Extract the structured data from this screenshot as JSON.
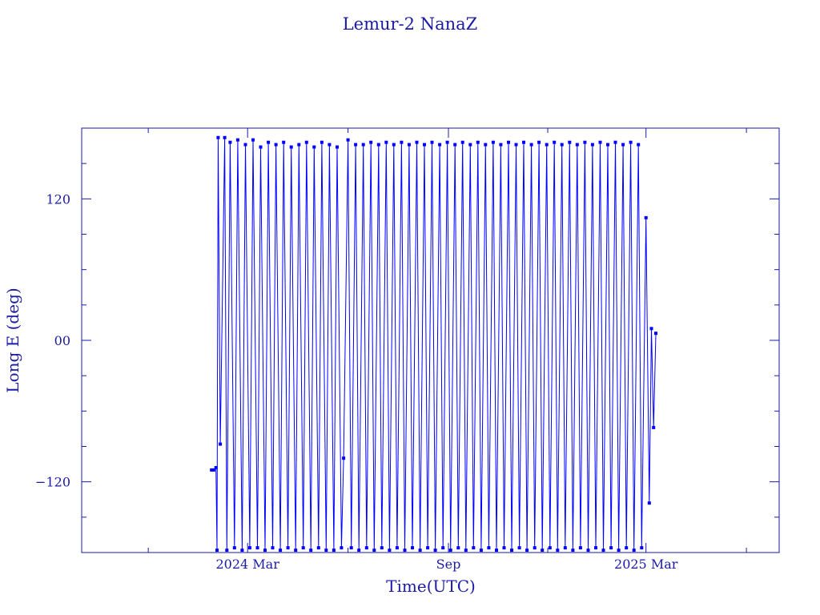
{
  "chart_data": {
    "type": "line",
    "title": "Lemur-2 NanaZ",
    "xlabel": "Time(UTC)",
    "ylabel": "Long E (deg)",
    "ylim": [
      -180,
      180
    ],
    "xlim": [
      "2023-10-01",
      "2025-07-01"
    ],
    "yticks": [
      {
        "value": 120,
        "label": "120"
      },
      {
        "value": 0,
        "label": "00"
      },
      {
        "value": -120,
        "label": "−120"
      }
    ],
    "xticks": [
      {
        "date": "2024-03-01",
        "label": "2024 Mar"
      },
      {
        "date": "2024-09-01",
        "label": "Sep"
      },
      {
        "date": "2025-03-01",
        "label": "2025 Mar"
      }
    ],
    "x_minor_ticks": [
      "2023-12-01",
      "2024-06-01",
      "2024-12-01",
      "2025-06-01"
    ],
    "grid": false,
    "series_color": "#0000ff",
    "series": [
      {
        "x": [
          "2024-01-28",
          "2024-01-30",
          "2024-02-01",
          "2024-02-02",
          "2024-02-03",
          "2024-02-05",
          "2024-02-09",
          "2024-02-11",
          "2024-02-14",
          "2024-02-18",
          "2024-02-21",
          "2024-02-25",
          "2024-02-28",
          "2024-03-03",
          "2024-03-06",
          "2024-03-10",
          "2024-03-13",
          "2024-03-17",
          "2024-03-20",
          "2024-03-24",
          "2024-03-27",
          "2024-03-31",
          "2024-04-03",
          "2024-04-07",
          "2024-04-10",
          "2024-04-14",
          "2024-04-17",
          "2024-04-21",
          "2024-04-24",
          "2024-04-28",
          "2024-05-01",
          "2024-05-05",
          "2024-05-08",
          "2024-05-12",
          "2024-05-15",
          "2024-05-19",
          "2024-05-22",
          "2024-05-26",
          "2024-05-28",
          "2024-06-01",
          "2024-06-04",
          "2024-06-08",
          "2024-06-11",
          "2024-06-15",
          "2024-06-18",
          "2024-06-22",
          "2024-06-25",
          "2024-06-29",
          "2024-07-02",
          "2024-07-06",
          "2024-07-09",
          "2024-07-13",
          "2024-07-16",
          "2024-07-20",
          "2024-07-23",
          "2024-07-27",
          "2024-07-30",
          "2024-08-03",
          "2024-08-06",
          "2024-08-10",
          "2024-08-13",
          "2024-08-17",
          "2024-08-20",
          "2024-08-24",
          "2024-08-27",
          "2024-08-31",
          "2024-09-03",
          "2024-09-07",
          "2024-09-10",
          "2024-09-14",
          "2024-09-17",
          "2024-09-21",
          "2024-09-24",
          "2024-09-28",
          "2024-10-01",
          "2024-10-05",
          "2024-10-08",
          "2024-10-12",
          "2024-10-15",
          "2024-10-19",
          "2024-10-22",
          "2024-10-26",
          "2024-10-29",
          "2024-11-02",
          "2024-11-05",
          "2024-11-09",
          "2024-11-12",
          "2024-11-16",
          "2024-11-19",
          "2024-11-23",
          "2024-11-26",
          "2024-11-30",
          "2024-12-03",
          "2024-12-07",
          "2024-12-10",
          "2024-12-14",
          "2024-12-17",
          "2024-12-21",
          "2024-12-24",
          "2024-12-28",
          "2024-12-31",
          "2025-01-04",
          "2025-01-07",
          "2025-01-11",
          "2025-01-14",
          "2025-01-18",
          "2025-01-21",
          "2025-01-25",
          "2025-01-28",
          "2025-02-01",
          "2025-02-04",
          "2025-02-08",
          "2025-02-11",
          "2025-02-15",
          "2025-02-18",
          "2025-02-22",
          "2025-02-25",
          "2025-03-01",
          "2025-03-04",
          "2025-03-06",
          "2025-03-08",
          "2025-03-10"
        ],
        "y": [
          -110,
          -110,
          -108,
          -178,
          172,
          -88,
          172,
          -178,
          168,
          -176,
          170,
          -178,
          166,
          -176,
          170,
          -176,
          164,
          -178,
          168,
          -176,
          166,
          -178,
          168,
          -176,
          164,
          -178,
          166,
          -176,
          168,
          -178,
          164,
          -176,
          168,
          -178,
          166,
          -178,
          164,
          -176,
          -100,
          170,
          -176,
          166,
          -178,
          166,
          -176,
          168,
          -178,
          166,
          -176,
          168,
          -178,
          166,
          -176,
          168,
          -178,
          166,
          -176,
          168,
          -178,
          166,
          -176,
          168,
          -178,
          166,
          -176,
          168,
          -178,
          166,
          -176,
          168,
          -178,
          166,
          -176,
          168,
          -178,
          166,
          -176,
          168,
          -178,
          166,
          -176,
          168,
          -178,
          166,
          -176,
          168,
          -178,
          166,
          -176,
          168,
          -178,
          166,
          -176,
          168,
          -178,
          166,
          -176,
          168,
          -178,
          166,
          -176,
          168,
          -178,
          166,
          -176,
          168,
          -178,
          166,
          -176,
          168,
          -178,
          166,
          -176,
          168,
          -178,
          166,
          -176,
          104,
          -138,
          10,
          -74,
          6
        ]
      }
    ]
  }
}
